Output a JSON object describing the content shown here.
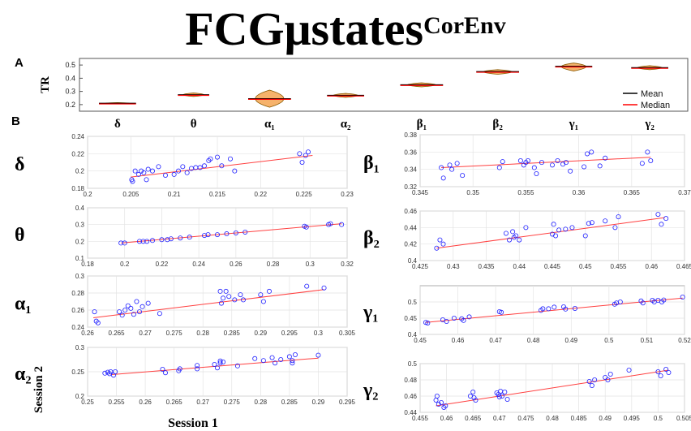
{
  "title": {
    "main": "FCGμstates",
    "superscript": "CorEnv"
  },
  "panel_labels": {
    "a": "A",
    "b": "B"
  },
  "axis_labels": {
    "session1": "Session 1",
    "session2": "Session 2"
  },
  "chart_data": [
    {
      "type": "violin",
      "panel": "A",
      "ylabel": "TR",
      "ylim": [
        0.15,
        0.55
      ],
      "yticks": [
        0.2,
        0.3,
        0.4,
        0.5
      ],
      "categories": [
        "δ",
        "θ",
        "α₁",
        "α₂",
        "β₁",
        "β₂",
        "γ₁",
        "γ₂"
      ],
      "series": [
        {
          "name": "Mean",
          "values": [
            0.21,
            0.275,
            0.245,
            0.27,
            0.35,
            0.45,
            0.49,
            0.48
          ]
        },
        {
          "name": "Median",
          "values": [
            0.21,
            0.275,
            0.245,
            0.27,
            0.35,
            0.45,
            0.49,
            0.48
          ]
        }
      ],
      "ranges": [
        [
          0.205,
          0.215
        ],
        [
          0.262,
          0.288
        ],
        [
          0.18,
          0.31
        ],
        [
          0.255,
          0.285
        ],
        [
          0.335,
          0.365
        ],
        [
          0.43,
          0.465
        ],
        [
          0.455,
          0.515
        ],
        [
          0.465,
          0.495
        ]
      ],
      "widths": [
        0.65,
        0.55,
        0.75,
        0.65,
        0.75,
        0.75,
        0.65,
        0.65
      ],
      "legend": {
        "position": "bottom-right",
        "entries": [
          {
            "name": "Mean",
            "color": "#000000"
          },
          {
            "name": "Median",
            "color": "#ff0000"
          }
        ]
      }
    },
    {
      "type": "scatter",
      "panel": "B",
      "band": "δ",
      "xlim": [
        0.2,
        0.23
      ],
      "ylim": [
        0.18,
        0.24
      ],
      "xticks": [
        "0.2",
        "0.205",
        "0.21",
        "0.215",
        "0.22",
        "0.225",
        "0.23"
      ],
      "yticks": [
        "0.18",
        "0.2",
        "0.22",
        "0.24"
      ],
      "fit": [
        [
          0.205,
          0.193
        ],
        [
          0.226,
          0.218
        ]
      ],
      "x": [
        0.2051,
        0.2052,
        0.2055,
        0.2059,
        0.2062,
        0.2065,
        0.2068,
        0.207,
        0.2075,
        0.2082,
        0.209,
        0.21,
        0.2105,
        0.211,
        0.2115,
        0.212,
        0.2125,
        0.213,
        0.2135,
        0.214,
        0.2142,
        0.215,
        0.2155,
        0.2165,
        0.217,
        0.2245,
        0.2248,
        0.2252,
        0.2255
      ],
      "y": [
        0.19,
        0.188,
        0.2,
        0.196,
        0.2,
        0.198,
        0.19,
        0.202,
        0.2,
        0.205,
        0.195,
        0.196,
        0.2,
        0.205,
        0.198,
        0.203,
        0.204,
        0.204,
        0.206,
        0.212,
        0.214,
        0.216,
        0.206,
        0.214,
        0.2,
        0.22,
        0.21,
        0.218,
        0.222
      ]
    },
    {
      "type": "scatter",
      "panel": "B",
      "band": "θ",
      "xlim": [
        0.18,
        0.32
      ],
      "ylim": [
        0.1,
        0.4
      ],
      "xticks": [
        "0.18",
        "0.2",
        "0.22",
        "0.24",
        "0.26",
        "0.28",
        "0.3",
        "0.32"
      ],
      "yticks": [
        "0.1",
        "0.2",
        "0.3",
        "0.4"
      ],
      "fit": [
        [
          0.198,
          0.19
        ],
        [
          0.317,
          0.305
        ]
      ],
      "x": [
        0.198,
        0.2,
        0.208,
        0.21,
        0.212,
        0.215,
        0.22,
        0.223,
        0.225,
        0.23,
        0.235,
        0.243,
        0.245,
        0.25,
        0.255,
        0.26,
        0.265,
        0.297,
        0.298,
        0.31,
        0.311,
        0.317
      ],
      "y": [
        0.19,
        0.19,
        0.2,
        0.2,
        0.2,
        0.205,
        0.21,
        0.21,
        0.215,
        0.22,
        0.225,
        0.235,
        0.24,
        0.24,
        0.245,
        0.25,
        0.255,
        0.29,
        0.285,
        0.3,
        0.305,
        0.3
      ]
    },
    {
      "type": "scatter",
      "panel": "B",
      "band": "α₁",
      "xlim": [
        0.26,
        0.305
      ],
      "ylim": [
        0.24,
        0.3
      ],
      "xticks": [
        "0.26",
        "0.265",
        "0.27",
        "0.275",
        "0.28",
        "0.285",
        "0.29",
        "0.295",
        "0.3",
        "0.305"
      ],
      "yticks": [
        "0.24",
        "0.26",
        "0.28",
        "0.3"
      ],
      "fit": [
        [
          0.261,
          0.251
        ],
        [
          0.301,
          0.284
        ]
      ],
      "x": [
        0.2612,
        0.2615,
        0.2618,
        0.2655,
        0.266,
        0.2665,
        0.267,
        0.2675,
        0.268,
        0.2685,
        0.269,
        0.2695,
        0.2705,
        0.2725,
        0.283,
        0.2832,
        0.2835,
        0.284,
        0.2845,
        0.2855,
        0.2865,
        0.287,
        0.29,
        0.2905,
        0.2915,
        0.298,
        0.301
      ],
      "y": [
        0.258,
        0.247,
        0.245,
        0.258,
        0.254,
        0.26,
        0.265,
        0.262,
        0.255,
        0.27,
        0.258,
        0.264,
        0.268,
        0.256,
        0.282,
        0.268,
        0.274,
        0.282,
        0.276,
        0.272,
        0.278,
        0.272,
        0.278,
        0.27,
        0.282,
        0.288,
        0.286
      ]
    },
    {
      "type": "scatter",
      "panel": "B",
      "band": "α₂",
      "xlim": [
        0.25,
        0.295
      ],
      "ylim": [
        0.2,
        0.3
      ],
      "xticks": [
        "0.25",
        "0.255",
        "0.26",
        "0.265",
        "0.27",
        "0.275",
        "0.28",
        "0.285",
        "0.29",
        "0.295"
      ],
      "yticks": [
        "0.2",
        "0.25",
        "0.3"
      ],
      "fit": [
        [
          0.254,
          0.244
        ],
        [
          0.29,
          0.278
        ]
      ],
      "x": [
        0.253,
        0.2535,
        0.2538,
        0.254,
        0.2545,
        0.2548,
        0.263,
        0.2635,
        0.2658,
        0.266,
        0.269,
        0.269,
        0.272,
        0.2725,
        0.273,
        0.273,
        0.2735,
        0.276,
        0.279,
        0.2805,
        0.282,
        0.2825,
        0.2835,
        0.285,
        0.2855,
        0.2855,
        0.286,
        0.29
      ],
      "y": [
        0.247,
        0.249,
        0.246,
        0.25,
        0.243,
        0.25,
        0.255,
        0.248,
        0.252,
        0.256,
        0.263,
        0.256,
        0.265,
        0.258,
        0.272,
        0.268,
        0.27,
        0.262,
        0.277,
        0.273,
        0.279,
        0.268,
        0.275,
        0.281,
        0.273,
        0.268,
        0.285,
        0.284
      ]
    },
    {
      "type": "scatter",
      "panel": "B",
      "band": "β₁",
      "xlim": [
        0.345,
        0.37
      ],
      "ylim": [
        0.32,
        0.38
      ],
      "xticks": [
        "0.345",
        "0.35",
        "0.355",
        "0.36",
        "0.365",
        "0.37"
      ],
      "yticks": [
        "0.32",
        "0.34",
        "0.36",
        "0.38"
      ],
      "fit": [
        [
          0.347,
          0.342
        ],
        [
          0.3668,
          0.354
        ]
      ],
      "x": [
        0.347,
        0.3472,
        0.3478,
        0.348,
        0.3485,
        0.349,
        0.3525,
        0.3528,
        0.3545,
        0.3548,
        0.355,
        0.3552,
        0.3558,
        0.356,
        0.3565,
        0.3575,
        0.358,
        0.3585,
        0.3588,
        0.3592,
        0.3605,
        0.3608,
        0.3612,
        0.362,
        0.3625,
        0.366,
        0.3665,
        0.3668
      ],
      "y": [
        0.342,
        0.33,
        0.345,
        0.34,
        0.347,
        0.333,
        0.342,
        0.349,
        0.35,
        0.345,
        0.348,
        0.35,
        0.342,
        0.335,
        0.348,
        0.345,
        0.35,
        0.346,
        0.348,
        0.338,
        0.343,
        0.358,
        0.36,
        0.344,
        0.353,
        0.347,
        0.36,
        0.35
      ]
    },
    {
      "type": "scatter",
      "panel": "B",
      "band": "β₂",
      "xlim": [
        0.425,
        0.465
      ],
      "ylim": [
        0.4,
        0.46
      ],
      "xticks": [
        "0.425",
        "0.43",
        "0.435",
        "0.44",
        "0.445",
        "0.45",
        "0.455",
        "0.46",
        "0.465"
      ],
      "yticks": [
        "0.4",
        "0.42",
        "0.44",
        "0.46"
      ],
      "fit": [
        [
          0.4275,
          0.415
        ],
        [
          0.462,
          0.452
        ]
      ],
      "x": [
        0.4275,
        0.428,
        0.4285,
        0.438,
        0.4385,
        0.439,
        0.4392,
        0.4395,
        0.44,
        0.441,
        0.445,
        0.4452,
        0.4455,
        0.446,
        0.447,
        0.448,
        0.45,
        0.4505,
        0.451,
        0.453,
        0.4545,
        0.455,
        0.461,
        0.4615,
        0.4622
      ],
      "y": [
        0.415,
        0.425,
        0.42,
        0.433,
        0.425,
        0.435,
        0.428,
        0.43,
        0.425,
        0.44,
        0.432,
        0.444,
        0.43,
        0.437,
        0.438,
        0.44,
        0.43,
        0.445,
        0.446,
        0.448,
        0.44,
        0.453,
        0.456,
        0.444,
        0.451
      ]
    },
    {
      "type": "scatter",
      "panel": "B",
      "band": "γ₁",
      "xlim": [
        0.45,
        0.52
      ],
      "ylim": [
        0.4,
        0.55
      ],
      "xticks": [
        "0.45",
        "0.46",
        "0.47",
        "0.48",
        "0.49",
        "0.5",
        "0.51",
        "0.52"
      ],
      "yticks": [
        "0.4",
        "0.45",
        "0.5"
      ],
      "fit": [
        [
          0.4515,
          0.437
        ],
        [
          0.5195,
          0.512
        ]
      ],
      "x": [
        0.4515,
        0.452,
        0.456,
        0.457,
        0.459,
        0.461,
        0.4615,
        0.463,
        0.471,
        0.4715,
        0.482,
        0.4825,
        0.484,
        0.4855,
        0.488,
        0.4885,
        0.491,
        0.5015,
        0.502,
        0.503,
        0.5085,
        0.509,
        0.5115,
        0.512,
        0.513,
        0.514,
        0.5145,
        0.5195
      ],
      "y": [
        0.437,
        0.435,
        0.445,
        0.44,
        0.45,
        0.448,
        0.443,
        0.454,
        0.47,
        0.468,
        0.474,
        0.479,
        0.479,
        0.484,
        0.485,
        0.478,
        0.48,
        0.493,
        0.497,
        0.5,
        0.503,
        0.497,
        0.505,
        0.5,
        0.505,
        0.5,
        0.506,
        0.515
      ]
    },
    {
      "type": "scatter",
      "panel": "B",
      "band": "γ₂",
      "xlim": [
        0.455,
        0.505
      ],
      "ylim": [
        0.44,
        0.5
      ],
      "xticks": [
        "0.455",
        "0.46",
        "0.465",
        "0.47",
        "0.475",
        "0.48",
        "0.485",
        "0.49",
        "0.495",
        "0.5",
        "0.505"
      ],
      "yticks": [
        "0.44",
        "0.46",
        "0.48",
        "0.5"
      ],
      "fit": [
        [
          0.458,
          0.448
        ],
        [
          0.502,
          0.492
        ]
      ],
      "x": [
        0.458,
        0.4582,
        0.4585,
        0.459,
        0.4595,
        0.4598,
        0.4645,
        0.465,
        0.4652,
        0.4655,
        0.4695,
        0.4698,
        0.47,
        0.4702,
        0.4705,
        0.471,
        0.4715,
        0.487,
        0.4875,
        0.488,
        0.49,
        0.4905,
        0.491,
        0.4945,
        0.5,
        0.5005,
        0.5015,
        0.502
      ],
      "y": [
        0.455,
        0.46,
        0.45,
        0.452,
        0.446,
        0.448,
        0.46,
        0.465,
        0.458,
        0.455,
        0.464,
        0.462,
        0.459,
        0.466,
        0.46,
        0.465,
        0.456,
        0.478,
        0.473,
        0.48,
        0.483,
        0.48,
        0.487,
        0.492,
        0.49,
        0.485,
        0.493,
        0.489
      ]
    }
  ]
}
